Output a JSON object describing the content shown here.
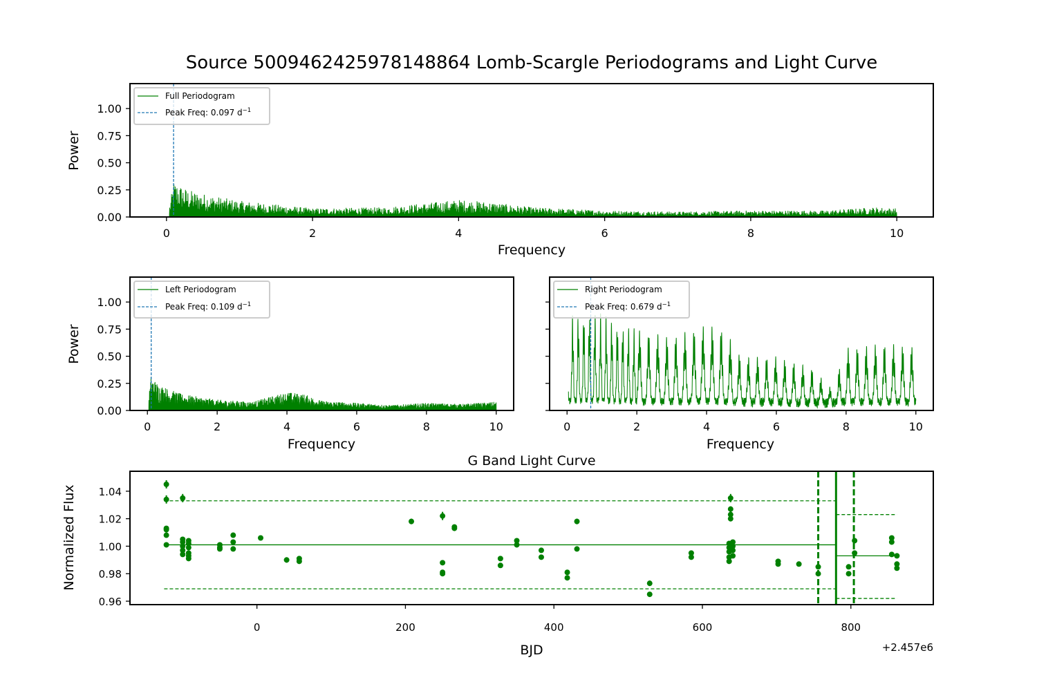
{
  "figure": {
    "title": "Source 5009462425978148864 Lomb-Scargle Periodograms and Light Curve"
  },
  "colors": {
    "series": "#008000",
    "peak": "#1f77b4",
    "axis": "#000000"
  },
  "chart_data": [
    {
      "type": "line",
      "panel": "full",
      "xlabel": "Frequency",
      "ylabel": "Power",
      "xlim": [
        -0.5,
        10.5
      ],
      "ylim": [
        0,
        1.23
      ],
      "xticks": [
        0,
        2,
        4,
        6,
        8,
        10
      ],
      "yticks": [
        0.0,
        0.25,
        0.5,
        0.75,
        1.0
      ],
      "xtick_labels": [
        "0",
        "2",
        "4",
        "6",
        "8",
        "10"
      ],
      "ytick_labels": [
        "0.00",
        "0.25",
        "0.50",
        "0.75",
        "1.00"
      ],
      "legend_position": "top-left",
      "series": [
        {
          "name": "Full Periodogram",
          "x_range": [
            0.04,
            10.0
          ],
          "envelope": [
            [
              0.04,
              0.1
            ],
            [
              0.1,
              0.33
            ],
            [
              0.3,
              0.25
            ],
            [
              0.6,
              0.2
            ],
            [
              1.0,
              0.15
            ],
            [
              2.0,
              0.08
            ],
            [
              3.0,
              0.09
            ],
            [
              4.0,
              0.16
            ],
            [
              4.4,
              0.14
            ],
            [
              5.0,
              0.09
            ],
            [
              6.0,
              0.06
            ],
            [
              7.0,
              0.05
            ],
            [
              8.0,
              0.06
            ],
            [
              9.0,
              0.06
            ],
            [
              9.7,
              0.09
            ],
            [
              10.0,
              0.08
            ]
          ]
        }
      ],
      "peak": {
        "freq": 0.097,
        "label_prefix": "Peak Freq: 0.097 d",
        "label_sup": "−1"
      }
    },
    {
      "type": "line",
      "panel": "left",
      "xlabel": "Frequency",
      "ylabel": "Power",
      "xlim": [
        -0.5,
        10.5
      ],
      "ylim": [
        0,
        1.23
      ],
      "xticks": [
        0,
        2,
        4,
        6,
        8,
        10
      ],
      "yticks": [
        0.0,
        0.25,
        0.5,
        0.75,
        1.0
      ],
      "xtick_labels": [
        "0",
        "2",
        "4",
        "6",
        "8",
        "10"
      ],
      "ytick_labels": [
        "0.00",
        "0.25",
        "0.50",
        "0.75",
        "1.00"
      ],
      "legend_position": "top-left",
      "series": [
        {
          "name": "Left Periodogram",
          "x_range": [
            0.04,
            10.0
          ],
          "envelope": [
            [
              0.04,
              0.12
            ],
            [
              0.1,
              0.32
            ],
            [
              0.3,
              0.25
            ],
            [
              0.6,
              0.2
            ],
            [
              1.0,
              0.15
            ],
            [
              2.0,
              0.1
            ],
            [
              3.0,
              0.08
            ],
            [
              4.0,
              0.17
            ],
            [
              4.5,
              0.15
            ],
            [
              5.0,
              0.09
            ],
            [
              6.0,
              0.07
            ],
            [
              7.0,
              0.05
            ],
            [
              8.0,
              0.07
            ],
            [
              9.0,
              0.06
            ],
            [
              10.0,
              0.08
            ]
          ]
        }
      ],
      "peak": {
        "freq": 0.109,
        "label_prefix": "Peak Freq: 0.109 d",
        "label_sup": "−1"
      }
    },
    {
      "type": "line",
      "panel": "right",
      "xlabel": "Frequency",
      "ylabel": "",
      "xlim": [
        -0.5,
        10.5
      ],
      "ylim": [
        0,
        1.23
      ],
      "xticks": [
        0,
        2,
        4,
        6,
        8,
        10
      ],
      "yticks": [
        0.0,
        0.25,
        0.5,
        0.75,
        1.0
      ],
      "xtick_labels": [
        "0",
        "2",
        "4",
        "6",
        "8",
        "10"
      ],
      "ytick_labels": [],
      "legend_position": "top-left",
      "series": [
        {
          "name": "Right Periodogram",
          "x_range": [
            0.04,
            10.0
          ],
          "envelope": [
            [
              0.04,
              0.88
            ],
            [
              0.5,
              0.93
            ],
            [
              1.0,
              0.9
            ],
            [
              2.0,
              0.75
            ],
            [
              3.0,
              0.68
            ],
            [
              4.0,
              0.8
            ],
            [
              4.5,
              0.75
            ],
            [
              5.0,
              0.5
            ],
            [
              6.0,
              0.5
            ],
            [
              7.0,
              0.4
            ],
            [
              7.6,
              0.2
            ],
            [
              8.0,
              0.58
            ],
            [
              9.0,
              0.62
            ],
            [
              10.0,
              0.6
            ]
          ],
          "period_near_peak": 0.16,
          "period_far": 0.26
        }
      ],
      "peak": {
        "freq": 0.679,
        "label_prefix": "Peak Freq: 0.679 d",
        "label_sup": "−1"
      }
    },
    {
      "type": "scatter",
      "panel": "light_curve",
      "title": "G Band Light Curve",
      "xlabel": "BJD",
      "ylabel": "Normalized Flux",
      "offset_text": "+2.457e6",
      "xlim": [
        -171,
        911
      ],
      "ylim": [
        0.9575,
        1.0545
      ],
      "xticks": [
        0,
        200,
        400,
        600,
        800
      ],
      "yticks": [
        0.96,
        0.98,
        1.0,
        1.02,
        1.04
      ],
      "xtick_labels": [
        "0",
        "200",
        "400",
        "600",
        "800"
      ],
      "ytick_labels": [
        "0.96",
        "0.98",
        "1.00",
        "1.02",
        "1.04"
      ],
      "points": [
        [
          -122,
          1.045,
          0.003
        ],
        [
          -122,
          1.034,
          0.003
        ],
        [
          -122,
          1.013,
          0.001
        ],
        [
          -122,
          1.012,
          0.001
        ],
        [
          -122,
          1.008,
          0.001
        ],
        [
          -122,
          1.001,
          0.001
        ],
        [
          -100,
          1.035,
          0.003
        ],
        [
          -100,
          1.005,
          0.001
        ],
        [
          -100,
          1.003,
          0.001
        ],
        [
          -100,
          1.0,
          0.001
        ],
        [
          -100,
          0.997,
          0.001
        ],
        [
          -100,
          0.994,
          0.001
        ],
        [
          -92,
          1.004,
          0.001
        ],
        [
          -92,
          1.002,
          0.001
        ],
        [
          -92,
          0.999,
          0.001
        ],
        [
          -92,
          0.995,
          0.001
        ],
        [
          -92,
          0.993,
          0.001
        ],
        [
          -92,
          0.991,
          0.001
        ],
        [
          -50,
          1.001,
          0.001
        ],
        [
          -50,
          0.999,
          0.001
        ],
        [
          -50,
          0.998,
          0.001
        ],
        [
          -32,
          1.008,
          0.001
        ],
        [
          -32,
          1.003,
          0.001
        ],
        [
          -32,
          0.998,
          0.001
        ],
        [
          5,
          1.006,
          0.001
        ],
        [
          40,
          0.99,
          0.002
        ],
        [
          57,
          0.991,
          0.001
        ],
        [
          57,
          0.989,
          0.001
        ],
        [
          208,
          1.018,
          0.002
        ],
        [
          250,
          1.022,
          0.003
        ],
        [
          250,
          0.988,
          0.001
        ],
        [
          250,
          0.981,
          0.001
        ],
        [
          250,
          0.98,
          0.001
        ],
        [
          266,
          1.014,
          0.001
        ],
        [
          266,
          1.013,
          0.001
        ],
        [
          328,
          0.991,
          0.001
        ],
        [
          328,
          0.986,
          0.001
        ],
        [
          350,
          1.004,
          0.001
        ],
        [
          350,
          1.001,
          0.001
        ],
        [
          383,
          0.997,
          0.001
        ],
        [
          383,
          0.992,
          0.001
        ],
        [
          418,
          0.981,
          0.001
        ],
        [
          418,
          0.977,
          0.001
        ],
        [
          431,
          1.018,
          0.002
        ],
        [
          431,
          0.998,
          0.001
        ],
        [
          529,
          0.973,
          0.002
        ],
        [
          529,
          0.965,
          0.001
        ],
        [
          585,
          0.995,
          0.001
        ],
        [
          585,
          0.992,
          0.001
        ],
        [
          638,
          1.035,
          0.003
        ],
        [
          638,
          1.027,
          0.002
        ],
        [
          638,
          1.023,
          0.002
        ],
        [
          638,
          1.02,
          0.002
        ],
        [
          636,
          1.002,
          0.001
        ],
        [
          636,
          0.999,
          0.001
        ],
        [
          636,
          0.996,
          0.001
        ],
        [
          636,
          0.992,
          0.001
        ],
        [
          636,
          0.989,
          0.001
        ],
        [
          641,
          1.003,
          0.001
        ],
        [
          641,
          1.0,
          0.001
        ],
        [
          641,
          0.997,
          0.001
        ],
        [
          641,
          0.993,
          0.001
        ],
        [
          702,
          0.989,
          0.001
        ],
        [
          702,
          0.987,
          0.001
        ],
        [
          730,
          0.987,
          0.001
        ],
        [
          756,
          0.985,
          0.001
        ],
        [
          756,
          0.98,
          0.001
        ],
        [
          797,
          0.985,
          0.001
        ],
        [
          797,
          0.98,
          0.001
        ],
        [
          805,
          1.004,
          0.001
        ],
        [
          805,
          0.995,
          0.001
        ],
        [
          855,
          1.006,
          0.001
        ],
        [
          855,
          1.003,
          0.001
        ],
        [
          855,
          0.994,
          0.001
        ],
        [
          862,
          0.993,
          0.001
        ],
        [
          862,
          0.987,
          0.001
        ],
        [
          862,
          0.984,
          0.001
        ]
      ],
      "reference_lines": {
        "left_mean": {
          "x": [
            -125,
            780
          ],
          "y": 1.001
        },
        "left_upper": {
          "x": [
            -125,
            780
          ],
          "y": 1.033
        },
        "left_lower": {
          "x": [
            -125,
            780
          ],
          "y": 0.969
        },
        "right_mean": {
          "x": [
            780,
            862
          ],
          "y": 0.993
        },
        "right_upper": {
          "x": [
            780,
            862
          ],
          "y": 1.023
        },
        "right_lower": {
          "x": [
            780,
            862
          ],
          "y": 0.962
        },
        "split_solid_x": 780,
        "split_dashed_x": [
          756,
          804
        ]
      }
    }
  ]
}
